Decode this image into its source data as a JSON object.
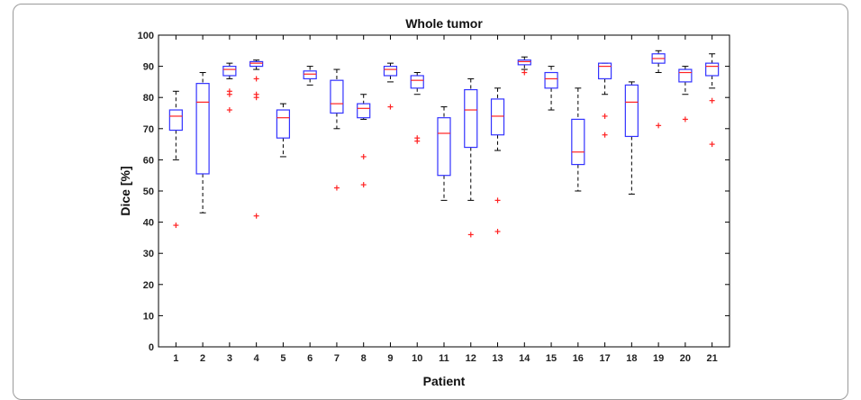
{
  "chart_data": {
    "type": "box",
    "title": "Whole tumor",
    "xlabel": "Patient",
    "ylabel": "Dice [%]",
    "ylim": [
      0,
      100
    ],
    "yticks": [
      0,
      10,
      20,
      30,
      40,
      50,
      60,
      70,
      80,
      90,
      100
    ],
    "categories": [
      "1",
      "2",
      "3",
      "4",
      "5",
      "6",
      "7",
      "8",
      "9",
      "10",
      "11",
      "12",
      "13",
      "14",
      "15",
      "16",
      "17",
      "18",
      "19",
      "20",
      "21"
    ],
    "grid": false,
    "colors": {
      "box": "#3333ff",
      "median": "#ff2222",
      "whisker": "#000000",
      "outlier": "#ff2222"
    },
    "boxes": [
      {
        "min": 60,
        "q1": 69.5,
        "median": 74,
        "q3": 76,
        "max": 82,
        "outliers": [
          39
        ]
      },
      {
        "min": 43,
        "q1": 55.5,
        "median": 78.5,
        "q3": 84.5,
        "max": 88,
        "outliers": []
      },
      {
        "min": 86,
        "q1": 87,
        "median": 89,
        "q3": 90,
        "max": 91,
        "outliers": [
          82,
          81,
          76
        ]
      },
      {
        "min": 89,
        "q1": 90,
        "median": 91,
        "q3": 91.5,
        "max": 92,
        "outliers": [
          86,
          81,
          80,
          42
        ]
      },
      {
        "min": 61,
        "q1": 67,
        "median": 73.5,
        "q3": 76,
        "max": 78,
        "outliers": []
      },
      {
        "min": 84,
        "q1": 86,
        "median": 87.5,
        "q3": 88.5,
        "max": 90,
        "outliers": []
      },
      {
        "min": 70,
        "q1": 75,
        "median": 78,
        "q3": 85.5,
        "max": 89,
        "outliers": [
          51
        ]
      },
      {
        "min": 73,
        "q1": 73.5,
        "median": 76.5,
        "q3": 78,
        "max": 81,
        "outliers": [
          61,
          52
        ]
      },
      {
        "min": 85,
        "q1": 87,
        "median": 89,
        "q3": 90,
        "max": 91,
        "outliers": [
          77
        ]
      },
      {
        "min": 81,
        "q1": 83,
        "median": 85.5,
        "q3": 87,
        "max": 88,
        "outliers": [
          67,
          66
        ]
      },
      {
        "min": 47,
        "q1": 55,
        "median": 68.5,
        "q3": 73.5,
        "max": 77,
        "outliers": []
      },
      {
        "min": 47,
        "q1": 64,
        "median": 76,
        "q3": 82.5,
        "max": 86,
        "outliers": [
          36
        ]
      },
      {
        "min": 63,
        "q1": 68,
        "median": 74,
        "q3": 79.5,
        "max": 83,
        "outliers": [
          47,
          37
        ]
      },
      {
        "min": 89,
        "q1": 90.5,
        "median": 91.5,
        "q3": 92,
        "max": 93,
        "outliers": [
          88
        ]
      },
      {
        "min": 76,
        "q1": 83,
        "median": 86,
        "q3": 88,
        "max": 90,
        "outliers": []
      },
      {
        "min": 50,
        "q1": 58.5,
        "median": 62.5,
        "q3": 73,
        "max": 83,
        "outliers": []
      },
      {
        "min": 81,
        "q1": 86,
        "median": 90,
        "q3": 91,
        "max": 91,
        "outliers": [
          74,
          68
        ]
      },
      {
        "min": 49,
        "q1": 67.5,
        "median": 78.5,
        "q3": 84,
        "max": 85,
        "outliers": []
      },
      {
        "min": 88,
        "q1": 91,
        "median": 92.5,
        "q3": 94,
        "max": 95,
        "outliers": [
          71
        ]
      },
      {
        "min": 81,
        "q1": 85,
        "median": 88,
        "q3": 89,
        "max": 90,
        "outliers": [
          73
        ]
      },
      {
        "min": 83,
        "q1": 87,
        "median": 90,
        "q3": 91,
        "max": 94,
        "outliers": [
          79,
          65
        ]
      }
    ]
  }
}
